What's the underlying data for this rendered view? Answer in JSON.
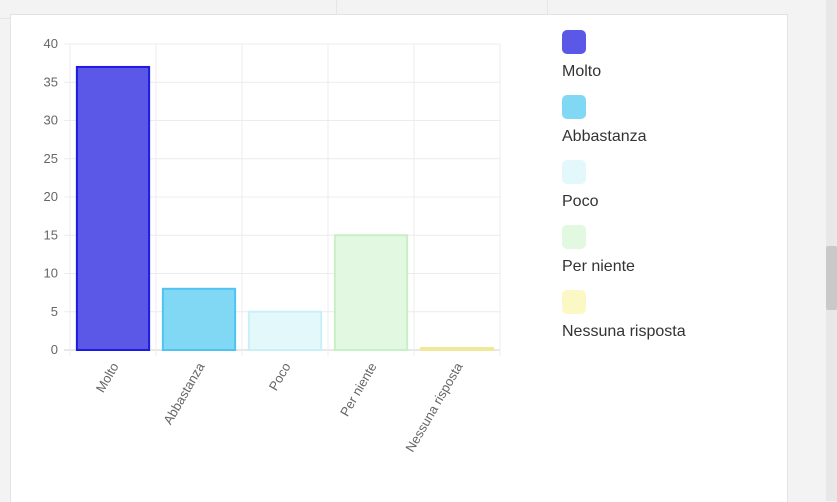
{
  "chart_data": {
    "type": "bar",
    "categories": [
      "Molto",
      "Abbastanza",
      "Poco",
      "Per niente",
      "Nessuna risposta"
    ],
    "values": [
      37,
      8,
      5,
      15,
      0
    ],
    "ylim": [
      0,
      40
    ],
    "yticks": [
      "0",
      "5",
      "10",
      "15",
      "20",
      "25",
      "30",
      "35",
      "40"
    ],
    "grid": true,
    "legend_position": "right",
    "colors": {
      "fill": [
        "#5b58e8",
        "#80d8f4",
        "#e3f8fb",
        "#e2f8e1",
        "#fbf8c6"
      ],
      "stroke": [
        "#1f1ae0",
        "#51c3f0",
        "#c9f0f8",
        "#c8f0c6",
        "#f0e99a"
      ]
    }
  },
  "legend": {
    "items": [
      {
        "label": "Molto"
      },
      {
        "label": "Abbastanza"
      },
      {
        "label": "Poco"
      },
      {
        "label": "Per niente"
      },
      {
        "label": "Nessuna risposta"
      }
    ]
  }
}
